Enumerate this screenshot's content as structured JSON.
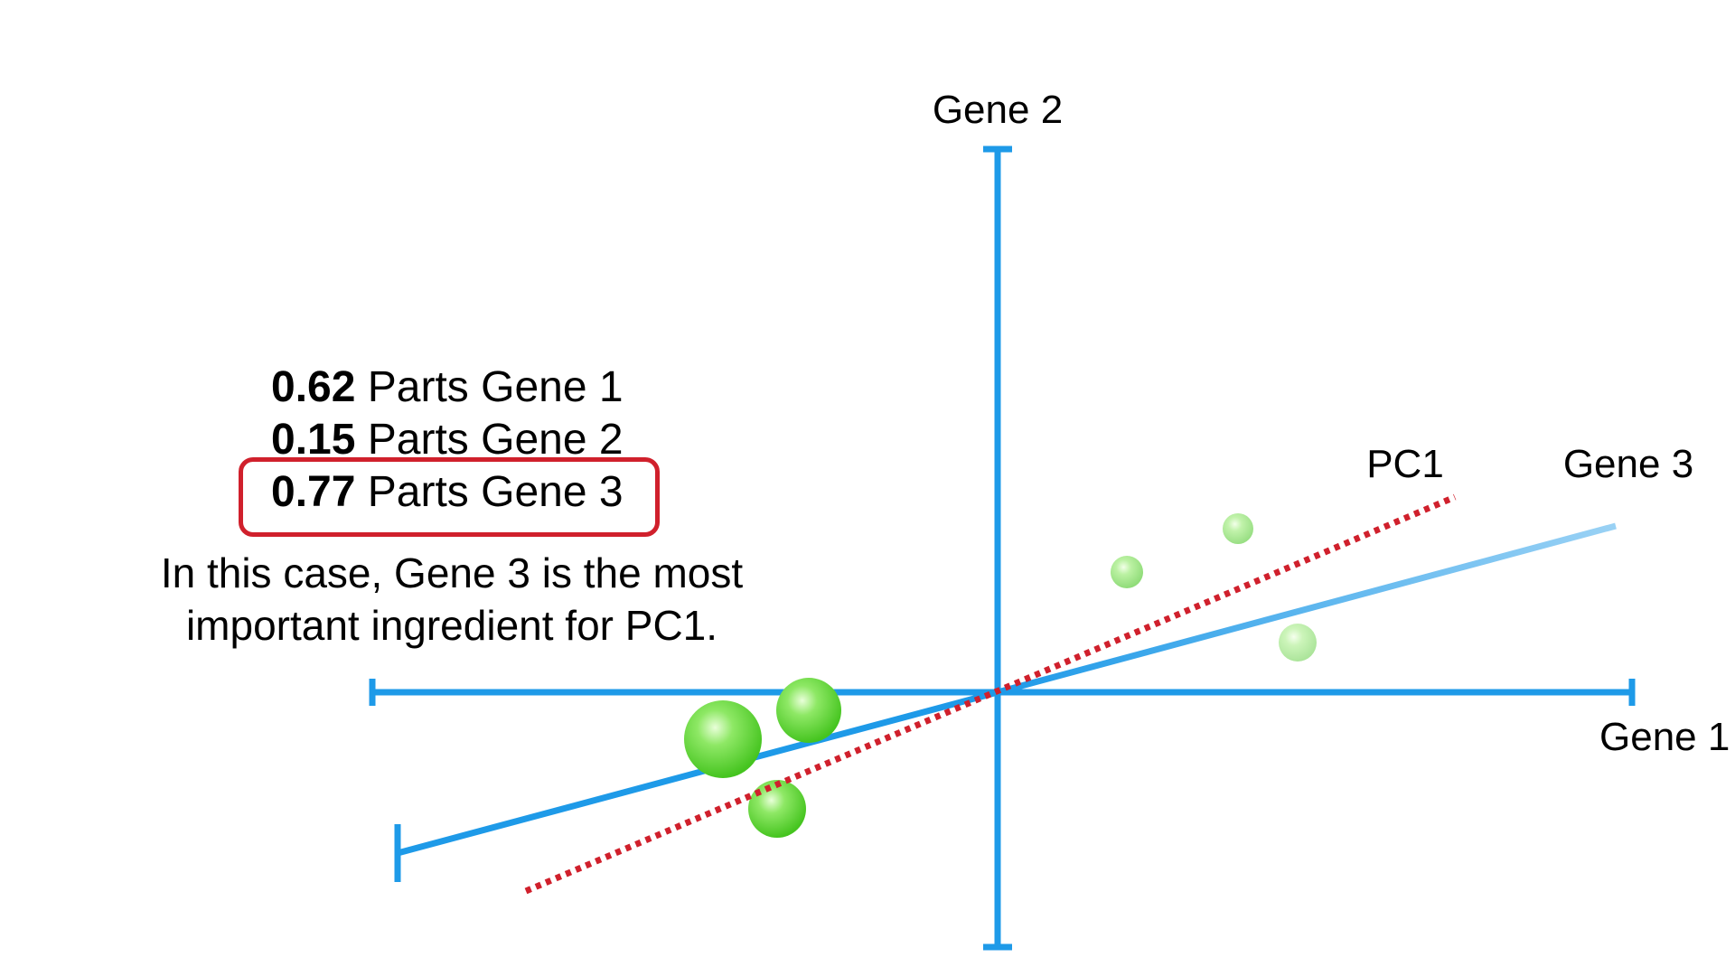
{
  "axes": {
    "gene1_label": "Gene 1",
    "gene2_label": "Gene 2",
    "gene3_label": "Gene 3",
    "pc1_label": "PC1"
  },
  "loadings": [
    {
      "value": "0.62",
      "text": "Parts Gene 1"
    },
    {
      "value": "0.15",
      "text": "Parts Gene 2"
    },
    {
      "value": "0.77",
      "text": "Parts Gene 3"
    }
  ],
  "explanation": {
    "line1": "In this case, Gene 3 is the most",
    "line2": "important ingredient for PC1."
  },
  "colors": {
    "axis": "#1e9ae8",
    "pc1": "#d0202c",
    "highlight": "#d0202c",
    "point": "#5fd63a"
  }
}
